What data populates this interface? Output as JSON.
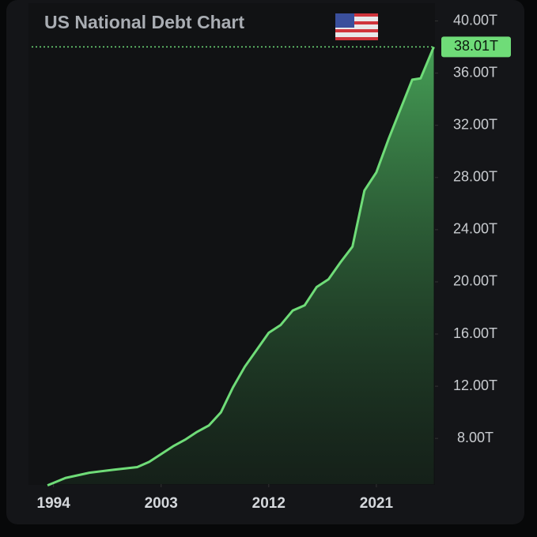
{
  "chart_data": {
    "type": "area",
    "title": "US National Debt Chart",
    "x": [
      1993.5,
      1995,
      1997,
      1999,
      2001,
      2002,
      2003,
      2004,
      2005,
      2006,
      2007,
      2008,
      2009,
      2010,
      2011,
      2012,
      2013,
      2014,
      2015,
      2016,
      2017,
      2018,
      2019,
      2020,
      2021,
      2022,
      2023,
      2024,
      2024.7,
      2025.8
    ],
    "values": [
      4.4,
      4.97,
      5.37,
      5.6,
      5.8,
      6.2,
      6.8,
      7.4,
      7.9,
      8.5,
      9.0,
      10.0,
      11.9,
      13.5,
      14.8,
      16.1,
      16.7,
      17.8,
      18.2,
      19.6,
      20.2,
      21.5,
      22.7,
      27.0,
      28.4,
      30.9,
      33.2,
      35.5,
      35.6,
      38.01
    ],
    "color": "#6fdc78",
    "current": {
      "value": 38.01,
      "label": "38.01T"
    },
    "xlim": [
      1992.7,
      2025.9
    ],
    "xticks": [
      1994,
      2003,
      2012,
      2021
    ],
    "ylim": [
      4.5,
      41
    ],
    "yticks": [
      {
        "value": 8,
        "label": "8.00T"
      },
      {
        "value": 12,
        "label": "12.00T"
      },
      {
        "value": 16,
        "label": "16.00T"
      },
      {
        "value": 20,
        "label": "20.00T"
      },
      {
        "value": 24,
        "label": "24.00T"
      },
      {
        "value": 28,
        "label": "28.00T"
      },
      {
        "value": 32,
        "label": "32.00T"
      },
      {
        "value": 36,
        "label": "36.00T"
      },
      {
        "value": 40,
        "label": "40.00T"
      }
    ]
  }
}
